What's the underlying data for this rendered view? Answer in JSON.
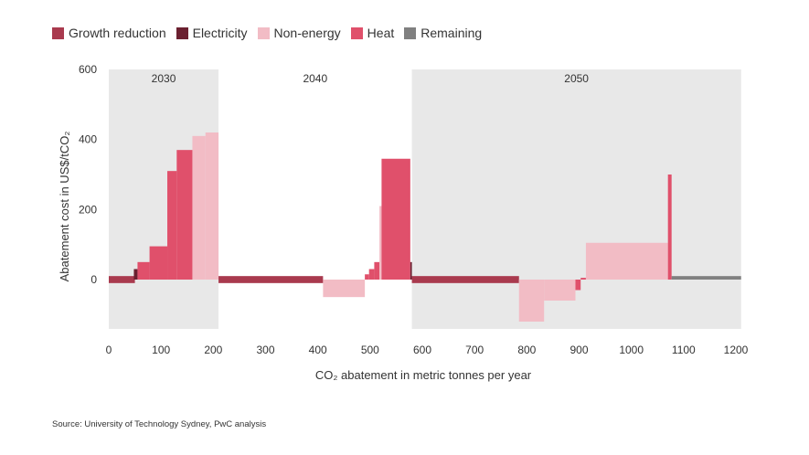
{
  "legend": [
    {
      "key": "growth",
      "label": "Growth reduction",
      "color": "#a93a4e"
    },
    {
      "key": "electricity",
      "label": "Electricity",
      "color": "#6b2030"
    },
    {
      "key": "nonenergy",
      "label": "Non-energy",
      "color": "#f2bcc5"
    },
    {
      "key": "heat",
      "label": "Heat",
      "color": "#e0506b"
    },
    {
      "key": "remaining",
      "label": "Remaining",
      "color": "#808080"
    }
  ],
  "source": "Source: University of Technology Sydney, PwC analysis",
  "chart_data": {
    "type": "bar",
    "subtype": "marginal abatement cost curve (variable-width bars)",
    "xlabel": "CO₂ abatement in metric tonnes per year",
    "ylabel": "Abatement cost in US$/tCO₂",
    "xlim": [
      0,
      1200
    ],
    "ylim": [
      -140,
      600
    ],
    "x_ticks": [
      0,
      100,
      200,
      300,
      400,
      500,
      600,
      700,
      800,
      900,
      1000,
      1100,
      1200
    ],
    "y_ticks": [
      0,
      200,
      400,
      600
    ],
    "grid": false,
    "legend_position": "top-left",
    "periods": [
      {
        "label": "2030",
        "x_start": 0,
        "x_end": 210,
        "shaded": true
      },
      {
        "label": "2040",
        "x_start": 210,
        "x_end": 580,
        "shaded": false
      },
      {
        "label": "2050",
        "x_start": 580,
        "x_end": 1210,
        "shaded": true
      }
    ],
    "bars": [
      {
        "category": "growth",
        "x_start": 0,
        "x_end": 50,
        "value": -10
      },
      {
        "category": "growth",
        "x_start": 0,
        "x_end": 50,
        "value": 10
      },
      {
        "category": "electricity",
        "x_start": 48,
        "x_end": 55,
        "value": 30
      },
      {
        "category": "heat",
        "x_start": 55,
        "x_end": 78,
        "value": 50
      },
      {
        "category": "heat",
        "x_start": 78,
        "x_end": 112,
        "value": 95
      },
      {
        "category": "heat",
        "x_start": 112,
        "x_end": 130,
        "value": 310
      },
      {
        "category": "heat",
        "x_start": 130,
        "x_end": 160,
        "value": 370
      },
      {
        "category": "nonenergy",
        "x_start": 160,
        "x_end": 185,
        "value": 410
      },
      {
        "category": "nonenergy",
        "x_start": 185,
        "x_end": 210,
        "value": 420
      },
      {
        "category": "growth",
        "x_start": 210,
        "x_end": 410,
        "value": 10
      },
      {
        "category": "growth",
        "x_start": 210,
        "x_end": 410,
        "value": -10
      },
      {
        "category": "nonenergy",
        "x_start": 410,
        "x_end": 490,
        "value": -50
      },
      {
        "category": "heat",
        "x_start": 490,
        "x_end": 498,
        "value": 15
      },
      {
        "category": "heat",
        "x_start": 498,
        "x_end": 508,
        "value": 30
      },
      {
        "category": "heat",
        "x_start": 508,
        "x_end": 518,
        "value": 50
      },
      {
        "category": "nonenergy",
        "x_start": 518,
        "x_end": 522,
        "value": 210
      },
      {
        "category": "heat",
        "x_start": 522,
        "x_end": 577,
        "value": 345
      },
      {
        "category": "electricity",
        "x_start": 577,
        "x_end": 580,
        "value": 50
      },
      {
        "category": "growth",
        "x_start": 580,
        "x_end": 785,
        "value": 10
      },
      {
        "category": "growth",
        "x_start": 580,
        "x_end": 785,
        "value": -10
      },
      {
        "category": "nonenergy",
        "x_start": 785,
        "x_end": 833,
        "value": -120
      },
      {
        "category": "nonenergy",
        "x_start": 833,
        "x_end": 893,
        "value": -60
      },
      {
        "category": "heat",
        "x_start": 893,
        "x_end": 903,
        "value": -30
      },
      {
        "category": "heat",
        "x_start": 903,
        "x_end": 913,
        "value": 5
      },
      {
        "category": "nonenergy",
        "x_start": 913,
        "x_end": 1070,
        "value": 105
      },
      {
        "category": "heat",
        "x_start": 1070,
        "x_end": 1077,
        "value": 300
      },
      {
        "category": "remaining",
        "x_start": 1077,
        "x_end": 1210,
        "value": 10
      }
    ]
  }
}
